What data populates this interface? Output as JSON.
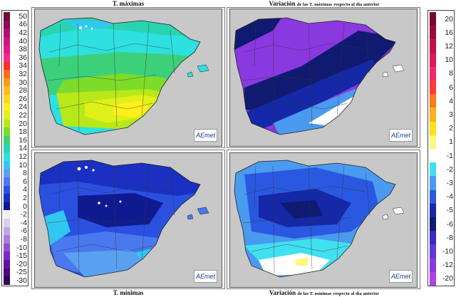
{
  "titles": {
    "tmax": "T. máximas",
    "var_tmax_main": "Variación",
    "var_tmax_small": "de las T. máximas",
    "var_tmax_tail": "respecto al día anterior",
    "tmin": "T. mínimas",
    "var_tmin_main": "Variación",
    "var_tmin_small": "de las T. mínimas",
    "var_tmin_tail": "respecto al día anterior"
  },
  "logo_text": "AEmet",
  "legend_temperature": [
    {
      "label": "50",
      "color": "#6b0f3a"
    },
    {
      "label": "46",
      "color": "#8a0d55"
    },
    {
      "label": "42",
      "color": "#b0106e"
    },
    {
      "label": "40",
      "color": "#cc1580"
    },
    {
      "label": "38",
      "color": "#e0188e"
    },
    {
      "label": "36",
      "color": "#ee2a92"
    },
    {
      "label": "34",
      "color": "#ff2a2a"
    },
    {
      "label": "32",
      "color": "#ff6a1a"
    },
    {
      "label": "30",
      "color": "#ff9a18"
    },
    {
      "label": "28",
      "color": "#ffbd1a"
    },
    {
      "label": "26",
      "color": "#ffd61a"
    },
    {
      "label": "24",
      "color": "#fff01a"
    },
    {
      "label": "22",
      "color": "#e0f01a"
    },
    {
      "label": "20",
      "color": "#b8e81a"
    },
    {
      "label": "18",
      "color": "#7ddc2a"
    },
    {
      "label": "16",
      "color": "#3dd07a"
    },
    {
      "label": "14",
      "color": "#2ad4b0"
    },
    {
      "label": "12",
      "color": "#2ee0e0"
    },
    {
      "label": "10",
      "color": "#30c8f0"
    },
    {
      "label": "8",
      "color": "#5aa0f0"
    },
    {
      "label": "6",
      "color": "#4a78ee"
    },
    {
      "label": "4",
      "color": "#2a50e0"
    },
    {
      "label": "2",
      "color": "#1a30c0"
    },
    {
      "label": "0",
      "color": "#101a90"
    },
    {
      "label": "-2",
      "color": "#f0f0f4"
    },
    {
      "label": "-4",
      "color": "#d8d0e8"
    },
    {
      "label": "-6",
      "color": "#c0a8e0"
    },
    {
      "label": "-8",
      "color": "#a880d8"
    },
    {
      "label": "-10",
      "color": "#9050d0"
    },
    {
      "label": "-15",
      "color": "#7a28c0"
    },
    {
      "label": "-20",
      "color": "#6010a8"
    },
    {
      "label": "-25",
      "color": "#48087e"
    },
    {
      "label": "-30",
      "color": "#300458"
    }
  ],
  "legend_variation": [
    {
      "label": "20",
      "color": "#7a0a2a"
    },
    {
      "label": "16",
      "color": "#9a0a3e"
    },
    {
      "label": "12",
      "color": "#c0104e"
    },
    {
      "label": "10",
      "color": "#e0185e"
    },
    {
      "label": "8",
      "color": "#f02a6a"
    },
    {
      "label": "6",
      "color": "#ff3a3a"
    },
    {
      "label": "4",
      "color": "#ff7a1a"
    },
    {
      "label": "3",
      "color": "#ffb01a"
    },
    {
      "label": "2",
      "color": "#ffe01a"
    },
    {
      "label": "1",
      "color": "#fff87a"
    },
    {
      "label": "-1",
      "color": "#ffffff"
    },
    {
      "label": "-2",
      "color": "#40e0f0"
    },
    {
      "label": "-3",
      "color": "#4a9af0"
    },
    {
      "label": "-4",
      "color": "#2a58e0"
    },
    {
      "label": "-5",
      "color": "#1428a8"
    },
    {
      "label": "-6",
      "color": "#101a70"
    },
    {
      "label": "-8",
      "color": "#3a28c8"
    },
    {
      "label": "-10",
      "color": "#6038d8"
    },
    {
      "label": "-12",
      "color": "#8a38e0"
    },
    {
      "label": "-20",
      "color": "#b040e8"
    }
  ]
}
